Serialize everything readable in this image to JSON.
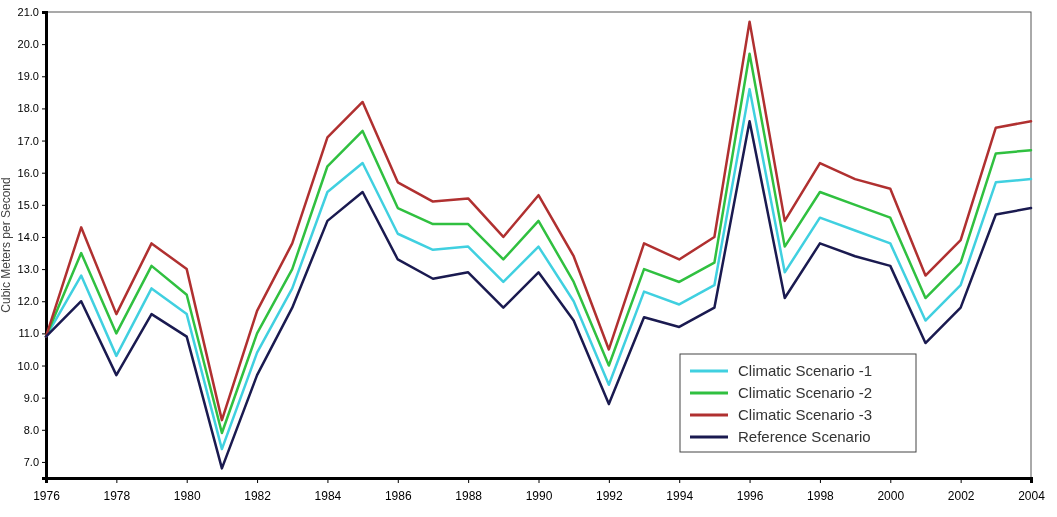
{
  "chart_data": {
    "type": "line",
    "ylabel": "Cubic Meters per Second",
    "x": [
      1976,
      1977,
      1978,
      1979,
      1980,
      1981,
      1982,
      1983,
      1984,
      1985,
      1986,
      1987,
      1988,
      1989,
      1990,
      1991,
      1992,
      1993,
      1994,
      1995,
      1996,
      1997,
      1998,
      1999,
      2000,
      2001,
      2002,
      2003,
      2004
    ],
    "xlim": [
      1976,
      2004
    ],
    "xticks": [
      1976,
      1978,
      1980,
      1982,
      1984,
      1986,
      1988,
      1990,
      1992,
      1994,
      1996,
      1998,
      2000,
      2002,
      2004
    ],
    "ylim": [
      6.5,
      21
    ],
    "yticks": [
      {
        "value": 7,
        "label": "7.0"
      },
      {
        "value": 8,
        "label": "8.0"
      },
      {
        "value": 9,
        "label": "9.0"
      },
      {
        "value": 10,
        "label": "10.0"
      },
      {
        "value": 11,
        "label": "11.0"
      },
      {
        "value": 12,
        "label": "12.0"
      },
      {
        "value": 13,
        "label": "13.0"
      },
      {
        "value": 14,
        "label": "14.0"
      },
      {
        "value": 15,
        "label": "15.0"
      },
      {
        "value": 16,
        "label": "16.0"
      },
      {
        "value": 17,
        "label": "17.0"
      },
      {
        "value": 18,
        "label": "18.0"
      },
      {
        "value": 19,
        "label": "19.0"
      },
      {
        "value": 20,
        "label": "20.0"
      },
      {
        "value": 21,
        "label": "21.0"
      }
    ],
    "grid": false,
    "legend": "bottom right",
    "marker": "none",
    "line_style": "solid",
    "series": [
      {
        "name": "Climatic Scenario -1",
        "color": "#40d0e0",
        "values": [
          10.9,
          12.8,
          10.3,
          12.4,
          11.6,
          7.4,
          10.4,
          12.4,
          15.4,
          16.3,
          14.1,
          13.6,
          13.7,
          12.6,
          13.7,
          12.0,
          9.4,
          12.3,
          11.9,
          12.5,
          18.6,
          12.9,
          14.6,
          14.2,
          13.8,
          11.4,
          12.5,
          15.7,
          15.8
        ]
      },
      {
        "name": "Climatic Scenario -2",
        "color": "#30c040",
        "values": [
          10.9,
          13.5,
          11.0,
          13.1,
          12.2,
          7.9,
          11.0,
          13.0,
          16.2,
          17.3,
          14.9,
          14.4,
          14.4,
          13.3,
          14.5,
          12.6,
          10.0,
          13.0,
          12.6,
          13.2,
          19.7,
          13.7,
          15.4,
          15.0,
          14.6,
          12.1,
          13.2,
          16.6,
          16.7
        ]
      },
      {
        "name": "Climatic Scenario -3",
        "color": "#b03030",
        "values": [
          10.9,
          14.3,
          11.6,
          13.8,
          13.0,
          8.3,
          11.7,
          13.8,
          17.1,
          18.2,
          15.7,
          15.1,
          15.2,
          14.0,
          15.3,
          13.4,
          10.5,
          13.8,
          13.3,
          14.0,
          20.7,
          14.5,
          16.3,
          15.8,
          15.5,
          12.8,
          13.9,
          17.4,
          17.6
        ]
      },
      {
        "name": "Reference Scenario",
        "color": "#1a1a50",
        "values": [
          10.9,
          12.0,
          9.7,
          11.6,
          10.9,
          6.8,
          9.7,
          11.8,
          14.5,
          15.4,
          13.3,
          12.7,
          12.9,
          11.8,
          12.9,
          11.4,
          8.8,
          11.5,
          11.2,
          11.8,
          17.6,
          12.1,
          13.8,
          13.4,
          13.1,
          10.7,
          11.8,
          14.7,
          14.9
        ]
      }
    ]
  }
}
